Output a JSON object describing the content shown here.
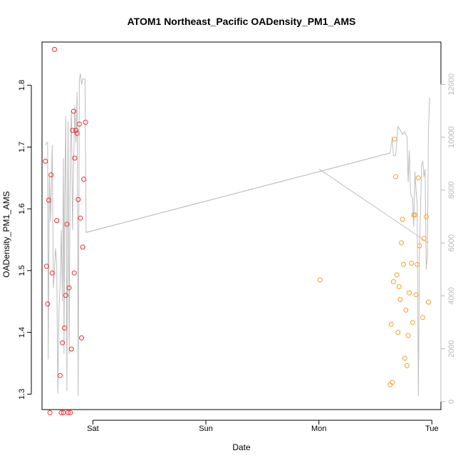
{
  "chart_data": {
    "type": "scatter",
    "title": "ATOM1 Northeast_Pacific OADensity_PM1_AMS",
    "xlabel": "Date",
    "ylabel": "OADensity_PM1_AMS",
    "x_ticks": [
      {
        "label": "Sat",
        "day": 1.0
      },
      {
        "label": "Sun",
        "day": 2.0
      },
      {
        "label": "Mon",
        "day": 3.0
      },
      {
        "label": "Tue",
        "day": 4.0
      }
    ],
    "xlim_days": [
      0.55,
      4.08
    ],
    "ylim": [
      1.275,
      1.87
    ],
    "y_ticks": [
      1.3,
      1.4,
      1.5,
      1.6,
      1.7,
      1.8
    ],
    "y2_ticks": [
      0,
      2000,
      4000,
      6000,
      8000,
      10000,
      12000
    ],
    "y2lim": [
      -300,
      13600
    ],
    "colors": {
      "series1": "#ee2a2a",
      "series2": "#f5a02b",
      "altitude_line": "#bdbdbd"
    },
    "series": [
      {
        "color_key": "series1",
        "points": [
          [
            0.58,
            1.677
          ],
          [
            0.59,
            1.507
          ],
          [
            0.6,
            1.446
          ],
          [
            0.61,
            1.614
          ],
          [
            0.62,
            1.27
          ],
          [
            0.63,
            1.655
          ],
          [
            0.64,
            1.496
          ],
          [
            0.66,
            1.858
          ],
          [
            0.68,
            1.581
          ],
          [
            0.71,
            1.33
          ],
          [
            0.72,
            1.27
          ],
          [
            0.73,
            1.383
          ],
          [
            0.74,
            1.27
          ],
          [
            0.75,
            1.407
          ],
          [
            0.76,
            1.46
          ],
          [
            0.77,
            1.575
          ],
          [
            0.78,
            1.27
          ],
          [
            0.79,
            1.472
          ],
          [
            0.8,
            1.27
          ],
          [
            0.81,
            1.373
          ],
          [
            0.82,
            1.727
          ],
          [
            0.83,
            1.758
          ],
          [
            0.835,
            1.496
          ],
          [
            0.84,
            1.682
          ],
          [
            0.85,
            1.727
          ],
          [
            0.86,
            1.722
          ],
          [
            0.87,
            1.615
          ],
          [
            0.88,
            1.737
          ],
          [
            0.89,
            1.585
          ],
          [
            0.9,
            1.391
          ],
          [
            0.91,
            1.538
          ],
          [
            0.92,
            1.648
          ],
          [
            0.935,
            1.74
          ]
        ]
      },
      {
        "color_key": "series2",
        "points": [
          [
            3.01,
            1.485
          ],
          [
            3.63,
            1.315
          ],
          [
            3.64,
            1.413
          ],
          [
            3.65,
            1.319
          ],
          [
            3.66,
            1.482
          ],
          [
            3.67,
            1.713
          ],
          [
            3.68,
            1.652
          ],
          [
            3.69,
            1.493
          ],
          [
            3.7,
            1.4
          ],
          [
            3.71,
            1.474
          ],
          [
            3.72,
            1.453
          ],
          [
            3.73,
            1.545
          ],
          [
            3.74,
            1.583
          ],
          [
            3.75,
            1.51
          ],
          [
            3.76,
            1.358
          ],
          [
            3.77,
            1.436
          ],
          [
            3.78,
            1.346
          ],
          [
            3.79,
            1.395
          ],
          [
            3.8,
            1.464
          ],
          [
            3.82,
            1.512
          ],
          [
            3.83,
            1.416
          ],
          [
            3.84,
            1.59
          ],
          [
            3.85,
            1.59
          ],
          [
            3.86,
            1.461
          ],
          [
            3.87,
            1.51
          ],
          [
            3.88,
            1.65
          ],
          [
            3.89,
            1.54
          ],
          [
            3.92,
            1.424
          ],
          [
            3.93,
            1.552
          ],
          [
            3.95,
            1.587
          ],
          [
            3.97,
            1.449
          ]
        ]
      }
    ],
    "altitude_line": [
      [
        0.58,
        9700
      ],
      [
        0.59,
        9800
      ],
      [
        0.6,
        9800
      ],
      [
        0.605,
        1600
      ],
      [
        0.615,
        8500
      ],
      [
        0.625,
        6800
      ],
      [
        0.64,
        9700
      ],
      [
        0.65,
        4300
      ],
      [
        0.66,
        5000
      ],
      [
        0.67,
        5800
      ],
      [
        0.68,
        5200
      ],
      [
        0.69,
        300
      ],
      [
        0.7,
        3500
      ],
      [
        0.71,
        4500
      ],
      [
        0.72,
        6500
      ],
      [
        0.73,
        3800
      ],
      [
        0.74,
        9200
      ],
      [
        0.745,
        1800
      ],
      [
        0.75,
        7200
      ],
      [
        0.76,
        10800
      ],
      [
        0.77,
        400
      ],
      [
        0.78,
        10600
      ],
      [
        0.79,
        1800
      ],
      [
        0.8,
        9600
      ],
      [
        0.81,
        11000
      ],
      [
        0.82,
        6500
      ],
      [
        0.83,
        9000
      ],
      [
        0.84,
        11200
      ],
      [
        0.85,
        9800
      ],
      [
        0.86,
        11700
      ],
      [
        0.87,
        200
      ],
      [
        0.88,
        12200
      ],
      [
        0.89,
        12400
      ],
      [
        0.9,
        12000
      ],
      [
        0.91,
        12200
      ],
      [
        0.93,
        12200
      ],
      [
        0.94,
        6400
      ],
      [
        3.63,
        9400
      ],
      [
        3.65,
        10000
      ],
      [
        3.66,
        9300
      ],
      [
        3.68,
        9300
      ],
      [
        3.7,
        10400
      ],
      [
        3.73,
        10200
      ],
      [
        3.74,
        10100
      ],
      [
        3.76,
        10200
      ],
      [
        3.78,
        10000
      ],
      [
        3.79,
        8300
      ],
      [
        3.8,
        9500
      ],
      [
        3.81,
        8000
      ],
      [
        3.815,
        7800
      ],
      [
        3.83,
        7700
      ],
      [
        3.84,
        6600
      ],
      [
        3.85,
        8700
      ],
      [
        3.86,
        8000
      ],
      [
        3.87,
        7400
      ],
      [
        3.88,
        200
      ],
      [
        3.89,
        5600
      ],
      [
        3.9,
        7400
      ],
      [
        3.91,
        9000
      ],
      [
        3.92,
        9100
      ],
      [
        3.93,
        8500
      ],
      [
        3.94,
        8800
      ],
      [
        3.95,
        5000
      ],
      [
        3.96,
        5500
      ],
      [
        3.97,
        10300
      ],
      [
        3.98,
        11500
      ]
    ],
    "altitude_connectors": [
      [
        [
          0.94,
          6400
        ],
        [
          3.63,
          9400
        ]
      ],
      [
        [
          3.0,
          8800
        ],
        [
          3.97,
          6000
        ]
      ]
    ]
  }
}
